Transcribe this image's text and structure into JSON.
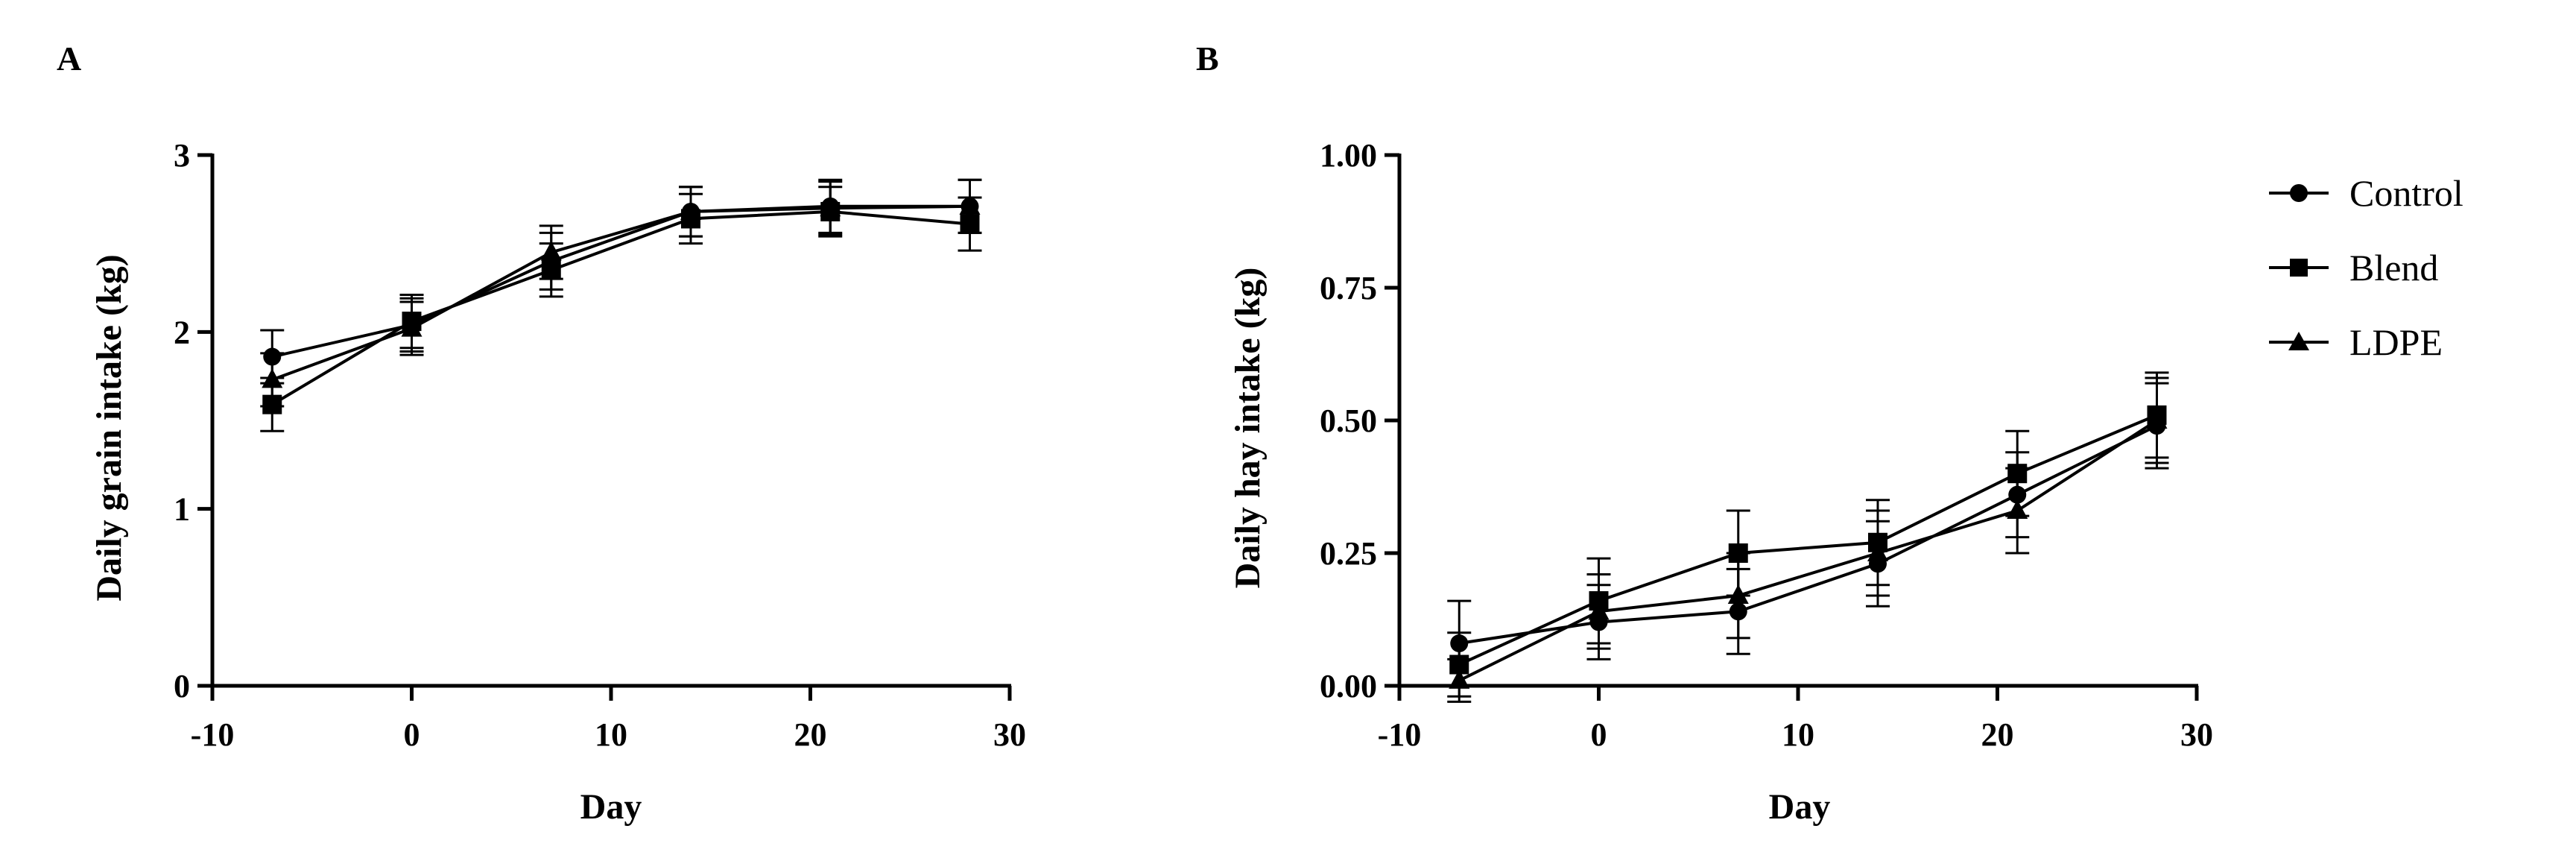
{
  "legend": [
    {
      "name": "Control",
      "marker": "circle"
    },
    {
      "name": "Blend",
      "marker": "square"
    },
    {
      "name": "LDPE",
      "marker": "triangle"
    }
  ],
  "chart_data": [
    {
      "type": "line",
      "panel_label": "A",
      "xlabel": "Day",
      "ylabel": "Daily grain intake (kg)",
      "xlim": [
        -10,
        30
      ],
      "ylim": [
        0,
        3
      ],
      "xticks": [
        -10,
        0,
        10,
        20,
        30
      ],
      "yticks": [
        0,
        1,
        2,
        3
      ],
      "ytick_labels": [
        "0",
        "1",
        "2",
        "3"
      ],
      "x": [
        -7,
        0,
        7,
        14,
        21,
        28
      ],
      "series": [
        {
          "name": "Control",
          "marker": "circle",
          "values": [
            1.86,
            2.04,
            2.4,
            2.68,
            2.71,
            2.71
          ],
          "errors": [
            0.15,
            0.15,
            0.16,
            0.14,
            0.15,
            0.15
          ]
        },
        {
          "name": "Blend",
          "marker": "square",
          "values": [
            1.59,
            2.06,
            2.35,
            2.64,
            2.68,
            2.61
          ],
          "errors": [
            0.15,
            0.15,
            0.15,
            0.14,
            0.14,
            0.15
          ]
        },
        {
          "name": "LDPE",
          "marker": "triangle",
          "values": [
            1.73,
            2.02,
            2.45,
            2.68,
            2.7,
            2.71
          ],
          "errors": [
            0.15,
            0.15,
            0.15,
            0.14,
            0.15,
            0.15
          ]
        }
      ],
      "grid": false
    },
    {
      "type": "line",
      "panel_label": "B",
      "xlabel": "Day",
      "ylabel": "Daily hay intake (kg)",
      "xlim": [
        -10,
        30
      ],
      "ylim": [
        0,
        1
      ],
      "xticks": [
        -10,
        0,
        10,
        20,
        30
      ],
      "yticks": [
        0,
        0.25,
        0.5,
        0.75,
        1
      ],
      "ytick_labels": [
        "0.00",
        "0.25",
        "0.50",
        "0.75",
        "1.00"
      ],
      "x": [
        -7,
        0,
        7,
        14,
        21,
        28
      ],
      "series": [
        {
          "name": "Control",
          "marker": "circle",
          "values": [
            0.08,
            0.12,
            0.14,
            0.23,
            0.36,
            0.49
          ],
          "errors": [
            0.08,
            0.07,
            0.08,
            0.08,
            0.08,
            0.08
          ]
        },
        {
          "name": "Blend",
          "marker": "square",
          "values": [
            0.04,
            0.16,
            0.25,
            0.27,
            0.4,
            0.51
          ],
          "errors": [
            0.06,
            0.08,
            0.08,
            0.08,
            0.08,
            0.08
          ]
        },
        {
          "name": "LDPE",
          "marker": "triangle",
          "values": [
            0.01,
            0.14,
            0.17,
            0.25,
            0.33,
            0.5
          ],
          "errors": [
            0.04,
            0.07,
            0.08,
            0.08,
            0.08,
            0.08
          ]
        }
      ],
      "grid": false
    }
  ]
}
